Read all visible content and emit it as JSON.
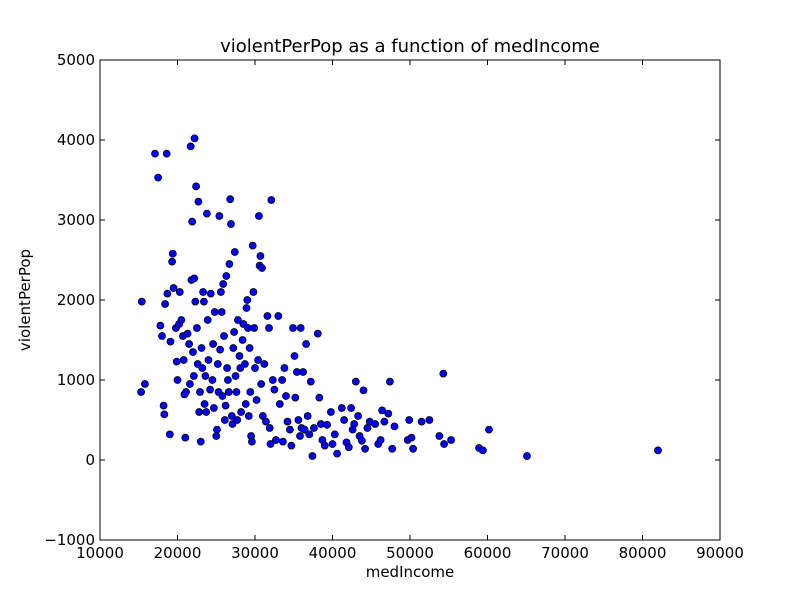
{
  "chart_data": {
    "type": "scatter",
    "title": "violentPerPop as a function of medIncome",
    "xlabel": "medIncome",
    "ylabel": "violentPerPop",
    "xlim": [
      10000,
      90000
    ],
    "ylim": [
      -1000,
      5000
    ],
    "xticks": [
      10000,
      20000,
      30000,
      40000,
      50000,
      60000,
      70000,
      80000,
      90000
    ],
    "yticks": [
      -1000,
      0,
      1000,
      2000,
      3000,
      4000,
      5000
    ],
    "xtick_labels": [
      "10000",
      "20000",
      "30000",
      "40000",
      "50000",
      "60000",
      "70000",
      "80000",
      "90000"
    ],
    "ytick_labels": [
      "−1000",
      "0",
      "1000",
      "2000",
      "3000",
      "4000",
      "5000"
    ],
    "grid": false,
    "marker_color": "#0000ff",
    "marker_edge": "#000000",
    "points": [
      [
        15300,
        850
      ],
      [
        15400,
        1980
      ],
      [
        15800,
        950
      ],
      [
        17100,
        3830
      ],
      [
        17500,
        3530
      ],
      [
        18600,
        3830
      ],
      [
        17800,
        1680
      ],
      [
        18000,
        1550
      ],
      [
        18400,
        1950
      ],
      [
        18700,
        2080
      ],
      [
        18200,
        680
      ],
      [
        18300,
        570
      ],
      [
        19000,
        320
      ],
      [
        19100,
        1480
      ],
      [
        19300,
        2480
      ],
      [
        19400,
        2580
      ],
      [
        19500,
        2150
      ],
      [
        19800,
        1650
      ],
      [
        19900,
        1230
      ],
      [
        20000,
        1000
      ],
      [
        20200,
        1700
      ],
      [
        20300,
        2100
      ],
      [
        20500,
        1750
      ],
      [
        20700,
        1550
      ],
      [
        20800,
        1250
      ],
      [
        20900,
        820
      ],
      [
        21000,
        280
      ],
      [
        21100,
        850
      ],
      [
        21300,
        1580
      ],
      [
        21500,
        1450
      ],
      [
        21600,
        950
      ],
      [
        21700,
        3920
      ],
      [
        21800,
        2250
      ],
      [
        21900,
        2980
      ],
      [
        22000,
        1350
      ],
      [
        22100,
        1050
      ],
      [
        22150,
        2270
      ],
      [
        22200,
        4020
      ],
      [
        22300,
        1980
      ],
      [
        22400,
        3420
      ],
      [
        22500,
        1650
      ],
      [
        22600,
        1200
      ],
      [
        22700,
        3230
      ],
      [
        22800,
        600
      ],
      [
        22900,
        850
      ],
      [
        23000,
        230
      ],
      [
        23100,
        1400
      ],
      [
        23200,
        1150
      ],
      [
        23300,
        2100
      ],
      [
        23400,
        1980
      ],
      [
        23500,
        700
      ],
      [
        23600,
        1050
      ],
      [
        23700,
        600
      ],
      [
        23800,
        3080
      ],
      [
        23900,
        1750
      ],
      [
        24000,
        1250
      ],
      [
        24200,
        880
      ],
      [
        24300,
        2080
      ],
      [
        24500,
        1000
      ],
      [
        24600,
        1450
      ],
      [
        24700,
        650
      ],
      [
        24800,
        1850
      ],
      [
        25000,
        300
      ],
      [
        25100,
        380
      ],
      [
        25200,
        1200
      ],
      [
        25300,
        850
      ],
      [
        25400,
        3050
      ],
      [
        25500,
        1380
      ],
      [
        25600,
        2100
      ],
      [
        25700,
        1850
      ],
      [
        25800,
        800
      ],
      [
        25900,
        2200
      ],
      [
        26000,
        1550
      ],
      [
        26100,
        500
      ],
      [
        26200,
        680
      ],
      [
        26300,
        2300
      ],
      [
        26400,
        1150
      ],
      [
        26500,
        1000
      ],
      [
        26600,
        850
      ],
      [
        26700,
        2450
      ],
      [
        26800,
        3260
      ],
      [
        26900,
        2950
      ],
      [
        27000,
        550
      ],
      [
        27100,
        450
      ],
      [
        27200,
        1400
      ],
      [
        27300,
        1600
      ],
      [
        27400,
        2600
      ],
      [
        27500,
        1050
      ],
      [
        27600,
        850
      ],
      [
        27700,
        500
      ],
      [
        27800,
        1750
      ],
      [
        28000,
        1300
      ],
      [
        28100,
        1150
      ],
      [
        28200,
        600
      ],
      [
        28400,
        1500
      ],
      [
        28500,
        1700
      ],
      [
        28700,
        1200
      ],
      [
        28800,
        700
      ],
      [
        28900,
        1900
      ],
      [
        29000,
        2000
      ],
      [
        29100,
        1650
      ],
      [
        29200,
        550
      ],
      [
        29300,
        1400
      ],
      [
        29400,
        850
      ],
      [
        29500,
        300
      ],
      [
        29600,
        230
      ],
      [
        29700,
        2680
      ],
      [
        29800,
        2100
      ],
      [
        29900,
        1650
      ],
      [
        30000,
        1150
      ],
      [
        30200,
        750
      ],
      [
        30400,
        1250
      ],
      [
        30500,
        3050
      ],
      [
        30600,
        2430
      ],
      [
        30700,
        2550
      ],
      [
        30800,
        950
      ],
      [
        30900,
        2400
      ],
      [
        31000,
        550
      ],
      [
        31200,
        1200
      ],
      [
        31400,
        480
      ],
      [
        31600,
        1800
      ],
      [
        31800,
        1650
      ],
      [
        31900,
        400
      ],
      [
        32000,
        200
      ],
      [
        32100,
        3250
      ],
      [
        32300,
        1000
      ],
      [
        32500,
        880
      ],
      [
        32700,
        250
      ],
      [
        33000,
        1800
      ],
      [
        33200,
        700
      ],
      [
        33500,
        1000
      ],
      [
        33600,
        230
      ],
      [
        33800,
        1150
      ],
      [
        34000,
        800
      ],
      [
        34200,
        480
      ],
      [
        34500,
        380
      ],
      [
        34700,
        180
      ],
      [
        34900,
        1650
      ],
      [
        35100,
        1300
      ],
      [
        35200,
        780
      ],
      [
        35400,
        1100
      ],
      [
        35600,
        500
      ],
      [
        35800,
        300
      ],
      [
        35900,
        1650
      ],
      [
        36000,
        400
      ],
      [
        36200,
        1100
      ],
      [
        36400,
        380
      ],
      [
        36600,
        1450
      ],
      [
        36800,
        550
      ],
      [
        37000,
        320
      ],
      [
        37200,
        980
      ],
      [
        37400,
        50
      ],
      [
        37600,
        400
      ],
      [
        38100,
        1580
      ],
      [
        38300,
        780
      ],
      [
        38500,
        450
      ],
      [
        38700,
        250
      ],
      [
        39000,
        180
      ],
      [
        39300,
        440
      ],
      [
        39800,
        600
      ],
      [
        40000,
        200
      ],
      [
        40300,
        320
      ],
      [
        40600,
        80
      ],
      [
        41200,
        650
      ],
      [
        41500,
        500
      ],
      [
        41800,
        220
      ],
      [
        42100,
        160
      ],
      [
        42400,
        650
      ],
      [
        42600,
        380
      ],
      [
        42800,
        450
      ],
      [
        43000,
        980
      ],
      [
        43300,
        550
      ],
      [
        43500,
        300
      ],
      [
        43800,
        240
      ],
      [
        44000,
        870
      ],
      [
        44200,
        140
      ],
      [
        44500,
        400
      ],
      [
        44800,
        480
      ],
      [
        45500,
        450
      ],
      [
        45900,
        200
      ],
      [
        46200,
        250
      ],
      [
        46400,
        620
      ],
      [
        46700,
        480
      ],
      [
        47200,
        580
      ],
      [
        47400,
        980
      ],
      [
        47700,
        140
      ],
      [
        48000,
        420
      ],
      [
        49700,
        250
      ],
      [
        49900,
        500
      ],
      [
        50200,
        280
      ],
      [
        50400,
        140
      ],
      [
        51500,
        480
      ],
      [
        52500,
        500
      ],
      [
        53800,
        300
      ],
      [
        54300,
        1080
      ],
      [
        54400,
        200
      ],
      [
        55300,
        250
      ],
      [
        58900,
        150
      ],
      [
        59400,
        120
      ],
      [
        60200,
        380
      ],
      [
        65100,
        50
      ],
      [
        82000,
        120
      ]
    ]
  }
}
